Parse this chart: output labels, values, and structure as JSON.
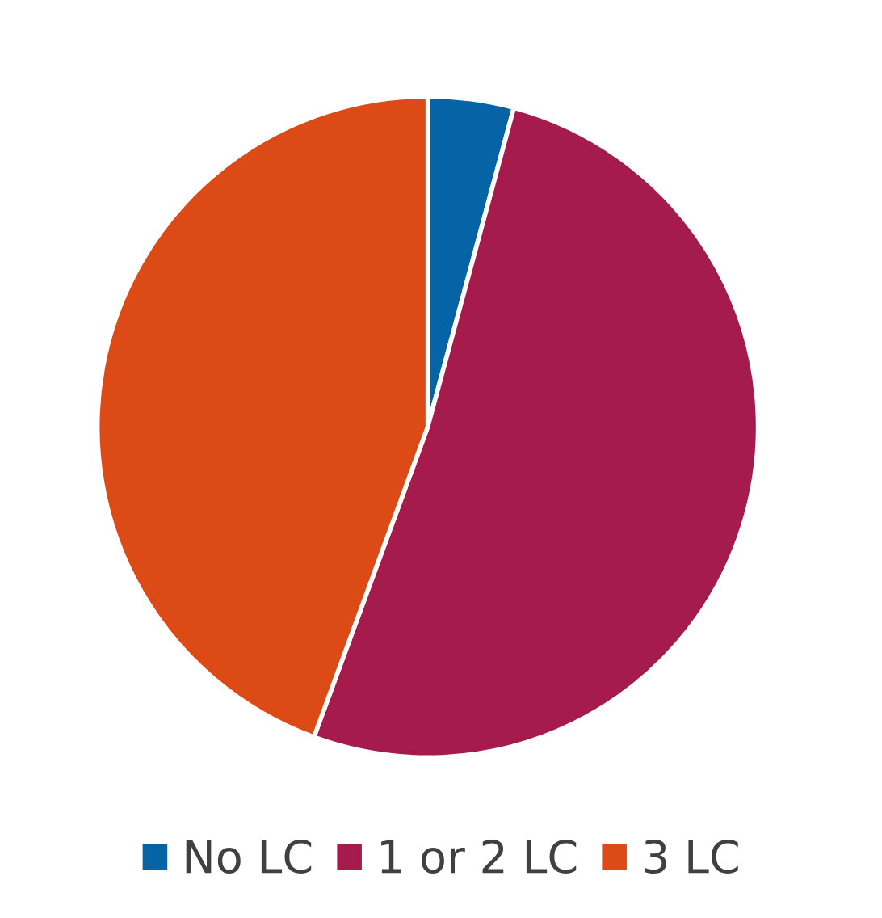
{
  "chart_data": {
    "type": "pie",
    "categories": [
      "No LC",
      "1 or 2 LC",
      "3 LC"
    ],
    "values": [
      4.2,
      51.4,
      44.4
    ],
    "colors": [
      "#0563a6",
      "#a51b4b",
      "#dc4a15"
    ],
    "legend": "bottom"
  }
}
